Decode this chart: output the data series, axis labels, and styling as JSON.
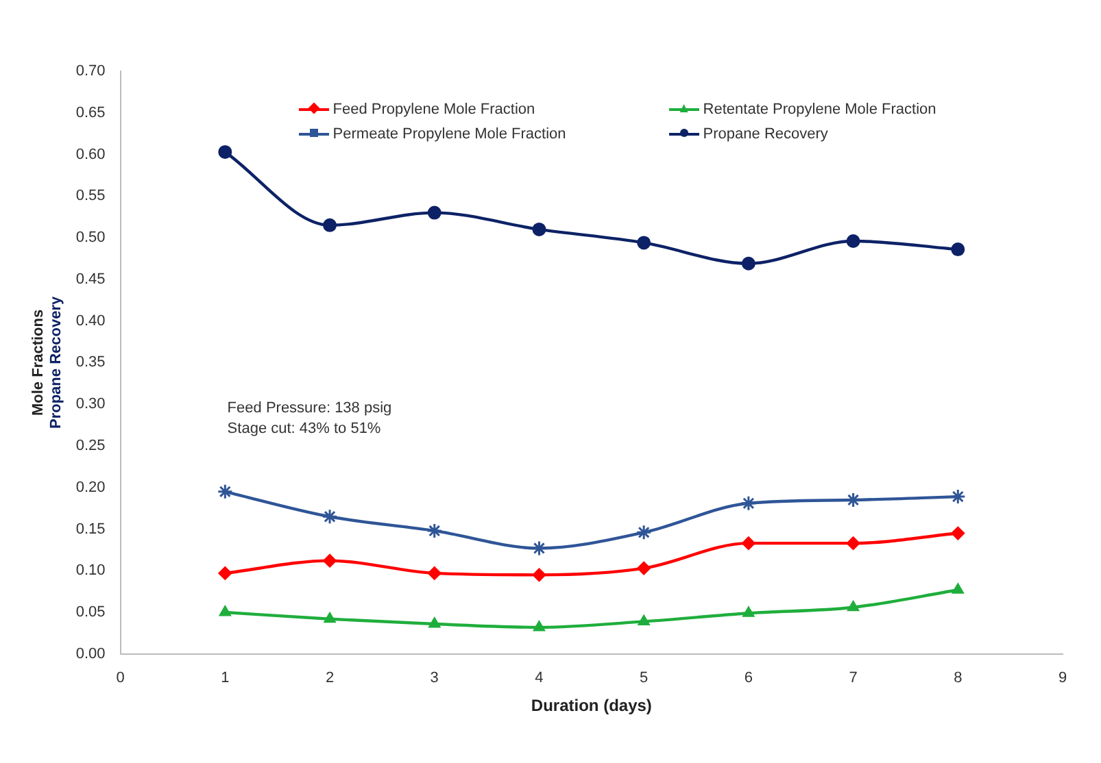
{
  "chart_data": {
    "type": "line",
    "xlabel": "Duration (days)",
    "ylabel": "Mole Fractions\nPropane Recovery",
    "x": [
      1,
      2,
      3,
      4,
      5,
      6,
      7,
      8
    ],
    "series": [
      {
        "name": "Feed Propylene Mole Fraction",
        "color": "#ff0000",
        "marker": "diamond",
        "values": [
          0.097,
          0.112,
          0.097,
          0.095,
          0.103,
          0.133,
          0.133,
          0.145
        ]
      },
      {
        "name": "Retentate Propylene Mole Fraction",
        "color": "#1fae3c",
        "marker": "triangle",
        "values": [
          0.05,
          0.042,
          0.036,
          0.032,
          0.039,
          0.049,
          0.056,
          0.077
        ]
      },
      {
        "name": "Permeate Propylene Mole Fraction",
        "color": "#2f5597",
        "marker": "cross",
        "values": [
          0.195,
          0.165,
          0.148,
          0.127,
          0.146,
          0.181,
          0.185,
          0.189
        ]
      },
      {
        "name": "Propane Recovery",
        "color": "#0d2266",
        "marker": "circle",
        "values": [
          0.603,
          0.515,
          0.53,
          0.51,
          0.494,
          0.469,
          0.496,
          0.486
        ]
      }
    ],
    "xlim": [
      0,
      9
    ],
    "xticks": [
      0,
      1,
      2,
      3,
      4,
      5,
      6,
      7,
      8,
      9
    ],
    "ylim": [
      0,
      0.7
    ],
    "yticks": [
      {
        "value": 0,
        "label": "0.00"
      },
      {
        "value": 0.05,
        "label": "0.05"
      },
      {
        "value": 0.1,
        "label": "0.10"
      },
      {
        "value": 0.15,
        "label": "0.15"
      },
      {
        "value": 0.2,
        "label": "0.20"
      },
      {
        "value": 0.25,
        "label": "0.25"
      },
      {
        "value": 0.3,
        "label": "0.30"
      },
      {
        "value": 0.35,
        "label": "0.35"
      },
      {
        "value": 0.4,
        "label": "0.40"
      },
      {
        "value": 0.45,
        "label": "0.45"
      },
      {
        "value": 0.5,
        "label": "0.50"
      },
      {
        "value": 0.55,
        "label": "0.55"
      },
      {
        "value": 0.6,
        "label": "0.60"
      },
      {
        "value": 0.65,
        "label": "0.65"
      },
      {
        "value": 0.7,
        "label": "0.70"
      }
    ],
    "annotations": [
      "Feed Pressure: 138 psig",
      "Stage cut: 43% to 51%"
    ],
    "grid": false,
    "legend": "top",
    "line_style": "solid"
  }
}
